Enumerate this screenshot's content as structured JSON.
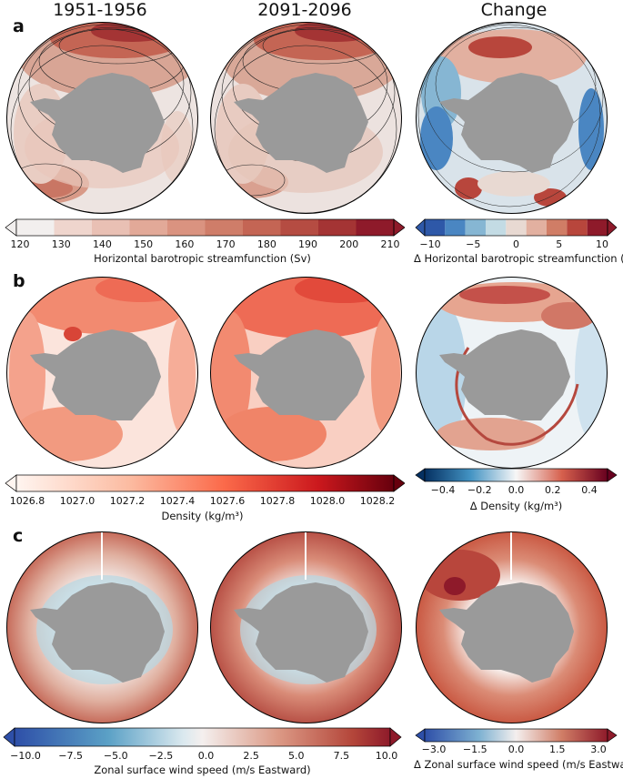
{
  "headers": [
    "1951-1956",
    "2091-2096",
    "Change"
  ],
  "panels": [
    {
      "label": "a",
      "cbar_main": {
        "title": "Horizontal barotropic streamfunction (Sv)",
        "ticks": [
          "120",
          "130",
          "140",
          "150",
          "160",
          "170",
          "180",
          "190",
          "200",
          "210"
        ],
        "colors": [
          "#f2efee",
          "#efd5cd",
          "#e9c0b4",
          "#e2a998",
          "#da9380",
          "#cf7d69",
          "#c46554",
          "#b54c42",
          "#a43434",
          "#8e1a2a"
        ]
      },
      "cbar_change": {
        "title": "Δ Horizontal barotropic streamfunction (Sv)",
        "ticks": [
          "−10",
          "−5",
          "0",
          "5",
          "10"
        ],
        "colors": [
          "#2e58a8",
          "#4a86c2",
          "#86b6d3",
          "#c3dbe4",
          "#e8d9d2",
          "#e2b0a0",
          "#d07d66",
          "#b8463c",
          "#8e1a2a"
        ]
      }
    },
    {
      "label": "b",
      "cbar_main": {
        "title": "Density (kg/m³)",
        "ticks": [
          "1026.8",
          "1027.0",
          "1027.2",
          "1027.4",
          "1027.6",
          "1027.8",
          "1028.0",
          "1028.2"
        ]
      },
      "cbar_change": {
        "title": "Δ Density (kg/m³)",
        "ticks": [
          "−0.4",
          "−0.2",
          "0.0",
          "0.2",
          "0.4"
        ]
      }
    },
    {
      "label": "c",
      "cbar_main": {
        "title": "Zonal surface wind speed (m/s Eastward)",
        "ticks": [
          "−10.0",
          "−7.5",
          "−5.0",
          "−2.5",
          "0.0",
          "2.5",
          "5.0",
          "7.5",
          "10.0"
        ]
      },
      "cbar_change": {
        "title": "Δ Zonal surface wind speed (m/s Eastward)",
        "ticks": [
          "−3.0",
          "−1.5",
          "0.0",
          "1.5",
          "3.0"
        ]
      }
    }
  ]
}
